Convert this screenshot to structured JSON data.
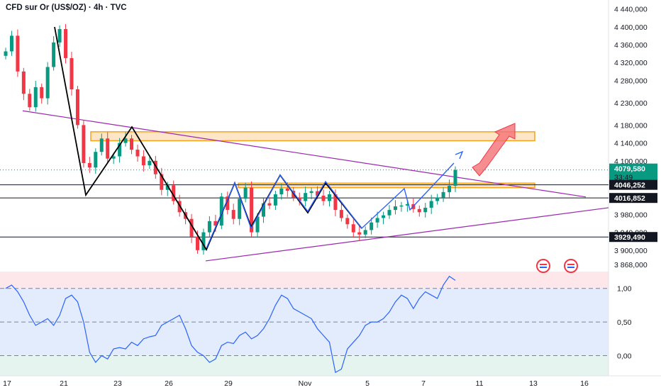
{
  "header": {
    "title": "CFD sur Or (US$/OZ) · 4h · TVC"
  },
  "colors": {
    "up": "#089981",
    "down": "#f23645",
    "current_tag": "#089981",
    "rsi_line": "#2962ff",
    "zone": "#f7a21b",
    "trendline": "#9c27b0"
  },
  "price_axis": {
    "ticks": [
      "4 440,000",
      "4 400,000",
      "4 360,000",
      "4 320,000",
      "4 280,000",
      "4 230,000",
      "4 180,000",
      "4 140,000",
      "4 100,000",
      "3 980,000",
      "3 940,000",
      "3 900,000",
      "3 868,000"
    ],
    "current_price": "4079,580",
    "countdown": "33:49",
    "levels": [
      "4046,252",
      "4016,852",
      "3929,490"
    ]
  },
  "rsi_axis": {
    "ticks": [
      "1,00",
      "0,50",
      "0,00"
    ]
  },
  "time_axis": {
    "ticks": [
      "17",
      "21",
      "23",
      "26",
      "29",
      "Nov",
      "5",
      "7",
      "11",
      "13",
      "16"
    ]
  },
  "chart_data": {
    "type": "candlestick",
    "title": "CFD sur Or (US$/OZ) · 4h · TVC",
    "x_ticks": [
      "17",
      "21",
      "23",
      "26",
      "29",
      "Nov",
      "5",
      "7",
      "11",
      "13",
      "16"
    ],
    "ylim": [
      3860,
      4460
    ],
    "price_series": [
      4345,
      4380,
      4300,
      4250,
      4220,
      4265,
      4240,
      4310,
      4365,
      4395,
      4330,
      4260,
      4180,
      4095,
      4085,
      4120,
      4150,
      4105,
      4110,
      4140,
      4150,
      4125,
      4110,
      4090,
      4100,
      4070,
      4035,
      4045,
      4010,
      3985,
      3970,
      3930,
      3900,
      3940,
      3965,
      3955,
      4020,
      3990,
      3970,
      4015,
      4040,
      3940,
      3975,
      4005,
      4000,
      4025,
      4038,
      4033,
      4018,
      4010,
      4028,
      4032,
      4022,
      4010,
      4025,
      3990,
      3972,
      3958,
      3940,
      3935,
      3945,
      3962,
      3972,
      3978,
      3990,
      3998,
      4000,
      4003,
      3992,
      3985,
      3995,
      4010,
      4018,
      4030,
      4044,
      4079.58
    ],
    "levels": [
      4046.252,
      4016.852,
      3929.49
    ],
    "resistance_zone": [
      4145,
      4165
    ],
    "breakout_zone": [
      4040,
      4050
    ],
    "current_price": 4079.58,
    "rsi_ylim": [
      -0.3,
      1.25
    ],
    "rsi_ticks": [
      1.0,
      0.5,
      0.0
    ],
    "rsi_series": [
      1.0,
      1.05,
      0.95,
      0.8,
      0.6,
      0.45,
      0.5,
      0.55,
      0.45,
      0.6,
      0.85,
      0.9,
      0.8,
      0.5,
      0.05,
      -0.1,
      0.0,
      -0.05,
      0.1,
      0.12,
      0.1,
      0.2,
      0.15,
      0.25,
      0.28,
      0.3,
      0.45,
      0.5,
      0.55,
      0.6,
      0.4,
      0.15,
      0.05,
      0.0,
      -0.1,
      -0.05,
      0.15,
      0.2,
      0.18,
      0.3,
      0.35,
      0.25,
      0.3,
      0.4,
      0.55,
      0.75,
      0.9,
      0.85,
      0.7,
      0.65,
      0.6,
      0.55,
      0.4,
      0.3,
      0.2,
      -0.25,
      -0.2,
      0.1,
      0.2,
      0.3,
      0.45,
      0.5,
      0.5,
      0.55,
      0.65,
      0.8,
      0.9,
      0.85,
      0.7,
      0.85,
      0.95,
      0.9,
      0.85,
      1.05,
      1.18,
      1.12
    ]
  }
}
